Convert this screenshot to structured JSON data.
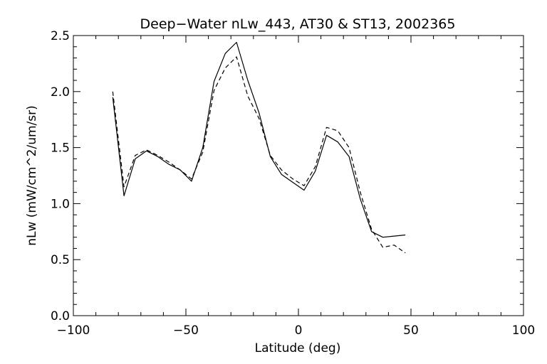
{
  "chart_data": {
    "type": "line",
    "title": "Deep−Water nLw_443, AT30 & ST13, 2002365",
    "xlabel": "Latitude (deg)",
    "ylabel": "nLw (mW/cm^2/um/sr)",
    "xlim": [
      -100,
      100
    ],
    "ylim": [
      0.0,
      2.5
    ],
    "xticks": [
      -100,
      -50,
      0,
      50,
      100
    ],
    "xtick_labels": [
      "−100",
      "−50",
      "0",
      "50",
      "100"
    ],
    "yticks": [
      0.0,
      0.5,
      1.0,
      1.5,
      2.0,
      2.5
    ],
    "ytick_labels": [
      "0.0",
      "0.5",
      "1.0",
      "1.5",
      "2.0",
      "2.5"
    ],
    "grid": false,
    "legend": "none",
    "series": [
      {
        "style": "solid",
        "color": "#000000",
        "x": [
          -82.5,
          -77.5,
          -72.5,
          -67.5,
          -62.5,
          -57.5,
          -52.5,
          -47.5,
          -42.5,
          -37.5,
          -32.5,
          -27.5,
          -22.5,
          -17.5,
          -12.5,
          -7.5,
          -2.5,
          2.5,
          7.5,
          12.5,
          17.5,
          22.5,
          27.5,
          32.5,
          37.5,
          42.5,
          47.5
        ],
        "y": [
          1.95,
          1.07,
          1.4,
          1.47,
          1.42,
          1.35,
          1.3,
          1.2,
          1.5,
          2.09,
          2.34,
          2.44,
          2.1,
          1.81,
          1.42,
          1.26,
          1.19,
          1.12,
          1.29,
          1.61,
          1.55,
          1.42,
          1.04,
          0.75,
          0.7,
          0.71,
          0.72
        ]
      },
      {
        "style": "dashed",
        "color": "#000000",
        "x": [
          -82.5,
          -77.5,
          -72.5,
          -67.5,
          -62.5,
          -57.5,
          -52.5,
          -47.5,
          -42.5,
          -37.5,
          -32.5,
          -27.5,
          -22.5,
          -17.5,
          -12.5,
          -7.5,
          -2.5,
          2.5,
          7.5,
          12.5,
          17.5,
          22.5,
          27.5,
          32.5,
          37.5,
          42.5,
          47.5
        ],
        "y": [
          2.0,
          1.15,
          1.43,
          1.48,
          1.43,
          1.37,
          1.3,
          1.22,
          1.46,
          2.01,
          2.21,
          2.31,
          1.96,
          1.76,
          1.43,
          1.3,
          1.22,
          1.16,
          1.33,
          1.68,
          1.65,
          1.5,
          1.1,
          0.77,
          0.61,
          0.63,
          0.56
        ]
      }
    ]
  }
}
